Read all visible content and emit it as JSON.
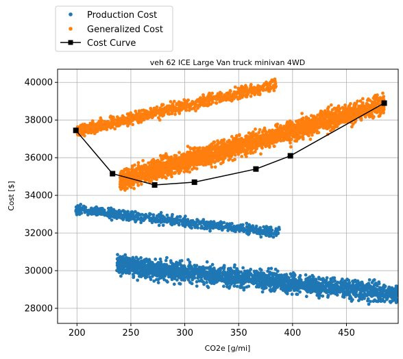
{
  "chart_data": {
    "type": "scatter",
    "title": "veh 62 ICE Large Van truck minivan 4WD",
    "xlabel": "CO2e [g/mi]",
    "ylabel": "Cost [$]",
    "xlim": [
      182,
      498
    ],
    "ylim": [
      27200,
      40700
    ],
    "xticks": [
      200,
      250,
      300,
      350,
      400,
      450
    ],
    "yticks": [
      28000,
      30000,
      32000,
      34000,
      36000,
      38000,
      40000
    ],
    "grid": true,
    "legend_position": "top-left-outside",
    "colors": {
      "production": "#1f77b4",
      "generalized": "#ff7f0e",
      "curve": "#000000"
    },
    "series": [
      {
        "name": "Production Cost",
        "kind": "scatter",
        "clusters": [
          {
            "x_range": [
              199,
              388
            ],
            "y_start": 33250,
            "slope": -6.5,
            "spread": 260,
            "count": 700
          },
          {
            "x_range": [
              237,
              500
            ],
            "y_start": 30300,
            "slope": -6.0,
            "spread": 480,
            "count": 2200
          }
        ]
      },
      {
        "name": "Generalized Cost",
        "kind": "scatter",
        "clusters": [
          {
            "x_range": [
              200,
              385
            ],
            "y_start": 37400,
            "slope": 13.5,
            "spread": 300,
            "count": 900
          },
          {
            "x_range": [
              240,
              485
            ],
            "y_start": 34800,
            "slope": 16.5,
            "spread": 520,
            "count": 2600
          }
        ]
      },
      {
        "name": "Cost Curve",
        "kind": "line",
        "x": [
          199,
          233,
          272,
          309,
          366,
          398,
          485
        ],
        "y": [
          37450,
          35150,
          34550,
          34700,
          35400,
          36100,
          38900
        ]
      }
    ]
  }
}
